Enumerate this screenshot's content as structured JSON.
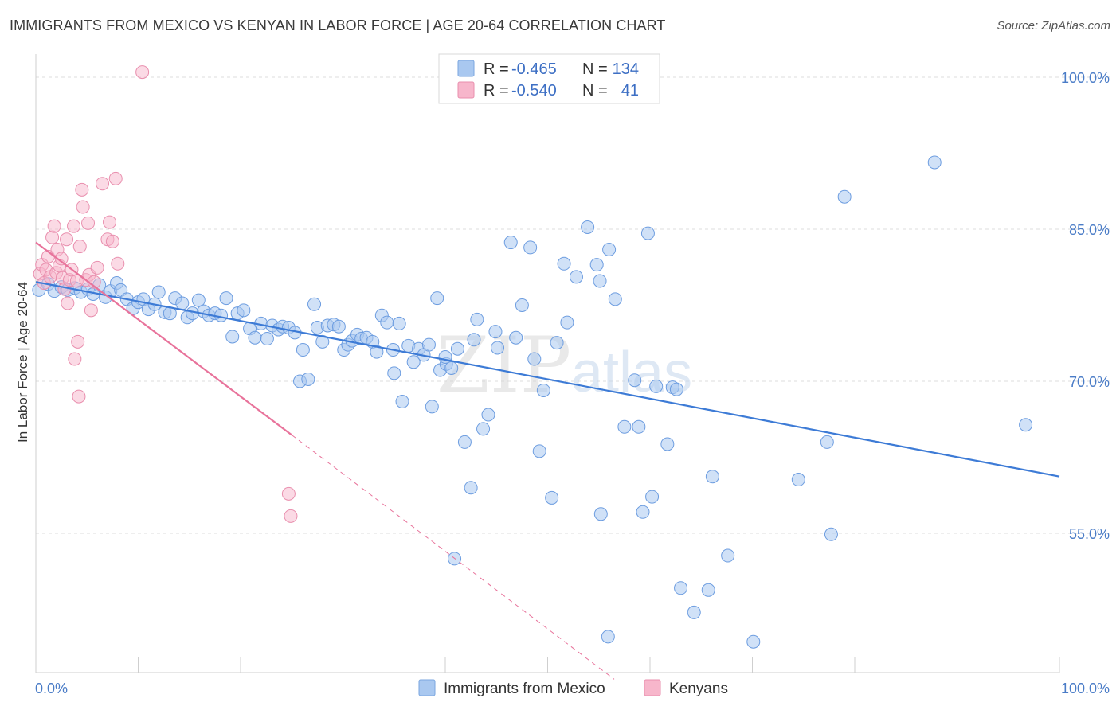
{
  "header": {
    "title": "IMMIGRANTS FROM MEXICO VS KENYAN IN LABOR FORCE | AGE 20-64 CORRELATION CHART",
    "source": "Source: ZipAtlas.com"
  },
  "watermark": {
    "zip": "ZIP",
    "atlas": "atlas"
  },
  "legend": {
    "rows": [
      {
        "r_label": "R =",
        "r_value": "-0.465",
        "n_label": "N =",
        "n_value": "134",
        "color": "#a9c8f0"
      },
      {
        "r_label": "R =",
        "r_value": "-0.540",
        "n_label": "N =",
        "n_value": "41",
        "color": "#f7b6cb"
      }
    ]
  },
  "bottom_legend": {
    "items": [
      {
        "label": "Immigrants from Mexico",
        "color": "#a9c8f0"
      },
      {
        "label": "Kenyans",
        "color": "#f7b6cb"
      }
    ]
  },
  "chart_data": {
    "type": "scatter",
    "title": "IMMIGRANTS FROM MEXICO VS KENYAN IN LABOR FORCE | AGE 20-64 CORRELATION CHART",
    "xlabel": "",
    "ylabel": "In Labor Force | Age 20-64",
    "xlim": [
      0,
      100
    ],
    "ylim": [
      40,
      102
    ],
    "x_tick_labels": [
      "0.0%",
      "100.0%"
    ],
    "y_ticks": [
      55,
      70,
      85,
      100
    ],
    "y_tick_labels": [
      "55.0%",
      "70.0%",
      "85.0%",
      "100.0%"
    ],
    "grid": true,
    "legend_position": "top-center",
    "colors": {
      "mexico": "#3d7bd6",
      "mexico_fill": "#a9c8f0",
      "kenya": "#e8739b",
      "kenya_fill": "#f7b6cb"
    },
    "series": [
      {
        "name": "Immigrants from Mexico",
        "trend": {
          "x": [
            0,
            100
          ],
          "y": [
            79.8,
            60.6
          ]
        },
        "points": [
          [
            0.3,
            79.0
          ],
          [
            1.2,
            79.6
          ],
          [
            1.8,
            78.9
          ],
          [
            2.5,
            79.3
          ],
          [
            3.1,
            79.0
          ],
          [
            3.8,
            79.2
          ],
          [
            4.4,
            78.8
          ],
          [
            5.1,
            79.1
          ],
          [
            5.6,
            78.6
          ],
          [
            6.2,
            79.5
          ],
          [
            6.8,
            78.3
          ],
          [
            7.3,
            78.9
          ],
          [
            7.9,
            79.7
          ],
          [
            8.3,
            79.0
          ],
          [
            8.9,
            78.1
          ],
          [
            9.5,
            77.2
          ],
          [
            10.0,
            77.8
          ],
          [
            10.5,
            78.1
          ],
          [
            11.0,
            77.1
          ],
          [
            11.6,
            77.6
          ],
          [
            12.0,
            78.8
          ],
          [
            12.6,
            76.8
          ],
          [
            13.1,
            76.7
          ],
          [
            13.6,
            78.2
          ],
          [
            14.3,
            77.7
          ],
          [
            14.8,
            76.3
          ],
          [
            15.3,
            76.7
          ],
          [
            15.9,
            78.0
          ],
          [
            16.4,
            76.9
          ],
          [
            16.9,
            76.5
          ],
          [
            17.5,
            76.7
          ],
          [
            18.1,
            76.5
          ],
          [
            18.6,
            78.2
          ],
          [
            19.2,
            74.4
          ],
          [
            19.7,
            76.7
          ],
          [
            20.3,
            77.0
          ],
          [
            20.9,
            75.2
          ],
          [
            21.4,
            74.3
          ],
          [
            22.0,
            75.7
          ],
          [
            22.6,
            74.2
          ],
          [
            23.1,
            75.5
          ],
          [
            23.7,
            75.1
          ],
          [
            24.1,
            75.4
          ],
          [
            24.7,
            75.3
          ],
          [
            25.3,
            74.8
          ],
          [
            25.8,
            70.0
          ],
          [
            26.1,
            73.1
          ],
          [
            26.6,
            70.2
          ],
          [
            27.2,
            77.6
          ],
          [
            27.5,
            75.3
          ],
          [
            28.0,
            73.9
          ],
          [
            28.5,
            75.5
          ],
          [
            29.1,
            75.6
          ],
          [
            29.6,
            75.4
          ],
          [
            30.1,
            73.1
          ],
          [
            30.5,
            73.6
          ],
          [
            30.9,
            74.0
          ],
          [
            31.4,
            74.6
          ],
          [
            31.8,
            74.2
          ],
          [
            32.3,
            74.3
          ],
          [
            32.9,
            73.9
          ],
          [
            33.3,
            72.9
          ],
          [
            33.8,
            76.5
          ],
          [
            34.3,
            75.8
          ],
          [
            34.9,
            73.1
          ],
          [
            35.5,
            75.7
          ],
          [
            35.8,
            68.0
          ],
          [
            36.4,
            73.5
          ],
          [
            36.9,
            71.9
          ],
          [
            37.4,
            73.2
          ],
          [
            37.9,
            72.6
          ],
          [
            38.4,
            73.6
          ],
          [
            38.7,
            67.5
          ],
          [
            39.2,
            78.2
          ],
          [
            39.5,
            71.1
          ],
          [
            40.1,
            71.7
          ],
          [
            40.6,
            71.3
          ],
          [
            41.2,
            73.2
          ],
          [
            41.9,
            64.0
          ],
          [
            42.5,
            59.5
          ],
          [
            42.8,
            74.1
          ],
          [
            43.1,
            76.1
          ],
          [
            43.7,
            65.3
          ],
          [
            44.2,
            66.7
          ],
          [
            44.9,
            74.9
          ],
          [
            45.1,
            73.3
          ],
          [
            46.4,
            83.7
          ],
          [
            46.9,
            74.3
          ],
          [
            47.5,
            77.5
          ],
          [
            48.3,
            83.2
          ],
          [
            48.7,
            72.2
          ],
          [
            49.2,
            63.1
          ],
          [
            49.6,
            69.1
          ],
          [
            50.4,
            58.5
          ],
          [
            50.9,
            73.8
          ],
          [
            51.6,
            81.6
          ],
          [
            51.9,
            75.8
          ],
          [
            52.8,
            80.3
          ],
          [
            53.9,
            85.2
          ],
          [
            54.8,
            81.5
          ],
          [
            55.1,
            79.9
          ],
          [
            55.2,
            56.9
          ],
          [
            55.9,
            44.8
          ],
          [
            56.0,
            83.0
          ],
          [
            56.6,
            78.1
          ],
          [
            57.5,
            65.5
          ],
          [
            58.5,
            70.1
          ],
          [
            58.9,
            65.5
          ],
          [
            59.3,
            57.1
          ],
          [
            59.8,
            84.6
          ],
          [
            60.2,
            58.6
          ],
          [
            60.6,
            69.5
          ],
          [
            61.7,
            63.8
          ],
          [
            62.2,
            69.4
          ],
          [
            62.6,
            69.2
          ],
          [
            63.0,
            49.6
          ],
          [
            64.3,
            47.2
          ],
          [
            65.7,
            49.4
          ],
          [
            66.1,
            60.6
          ],
          [
            67.6,
            52.8
          ],
          [
            70.1,
            44.3
          ],
          [
            74.5,
            60.3
          ],
          [
            77.3,
            64.0
          ],
          [
            77.7,
            54.9
          ],
          [
            79.0,
            88.2
          ],
          [
            87.8,
            91.6
          ],
          [
            96.7,
            65.7
          ],
          [
            40.9,
            52.5
          ],
          [
            40.0,
            72.4
          ],
          [
            35.0,
            70.8
          ]
        ]
      },
      {
        "name": "Kenyans",
        "trend": {
          "x": [
            0,
            25
          ],
          "y": [
            83.7,
            64.7
          ]
        },
        "trend_dashed": {
          "x": [
            25,
            56.5
          ],
          "y": [
            64.7,
            40.6
          ]
        },
        "points": [
          [
            0.4,
            80.6
          ],
          [
            0.6,
            81.5
          ],
          [
            0.8,
            79.7
          ],
          [
            1.0,
            81.0
          ],
          [
            1.2,
            82.3
          ],
          [
            1.4,
            80.3
          ],
          [
            1.6,
            84.2
          ],
          [
            1.8,
            85.3
          ],
          [
            2.0,
            80.7
          ],
          [
            2.1,
            83.0
          ],
          [
            2.3,
            81.4
          ],
          [
            2.5,
            82.1
          ],
          [
            2.6,
            80.2
          ],
          [
            2.8,
            79.1
          ],
          [
            3.0,
            84.0
          ],
          [
            3.1,
            77.7
          ],
          [
            3.3,
            80.0
          ],
          [
            3.5,
            81.0
          ],
          [
            3.7,
            85.3
          ],
          [
            3.8,
            72.2
          ],
          [
            4.0,
            79.9
          ],
          [
            4.1,
            73.9
          ],
          [
            4.2,
            68.5
          ],
          [
            4.3,
            83.3
          ],
          [
            4.5,
            88.9
          ],
          [
            4.6,
            87.2
          ],
          [
            4.9,
            80.0
          ],
          [
            5.1,
            85.6
          ],
          [
            5.2,
            80.5
          ],
          [
            5.4,
            77.0
          ],
          [
            5.7,
            79.8
          ],
          [
            6.0,
            81.2
          ],
          [
            6.5,
            89.5
          ],
          [
            7.0,
            84.0
          ],
          [
            7.2,
            85.7
          ],
          [
            7.5,
            83.8
          ],
          [
            7.8,
            90.0
          ],
          [
            8.0,
            81.6
          ],
          [
            10.4,
            100.5
          ],
          [
            24.7,
            58.9
          ],
          [
            24.9,
            56.7
          ]
        ]
      }
    ]
  }
}
